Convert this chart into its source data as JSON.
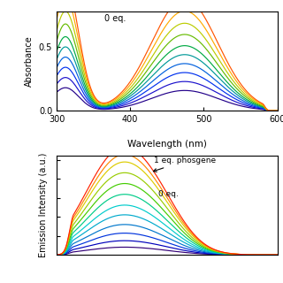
{
  "top_panel": {
    "xlabel": "Wavelength (nm)",
    "ylabel": "Absorbance",
    "xlim": [
      300,
      600
    ],
    "ylim": [
      0.0,
      0.78
    ],
    "yticks": [
      0.0,
      0.5
    ],
    "xticks": [
      300,
      400,
      500,
      600
    ],
    "label_0eq": "0 eq.",
    "n_curves": 10,
    "peak1_wl": 312,
    "peak1_sigma": 18,
    "peak2_wl": 474,
    "peak2_sigma": 45,
    "peak2_to_peak1_ratio": 0.88,
    "cutoff_wl": 580,
    "scales": [
      0.18,
      0.26,
      0.34,
      0.42,
      0.5,
      0.58,
      0.68,
      0.78,
      0.89,
      1.0
    ],
    "colors": [
      "#22008A",
      "#1A10CC",
      "#0030EE",
      "#0060DD",
      "#009999",
      "#00AA44",
      "#66BB00",
      "#BBCC00",
      "#FFAA00",
      "#FF5500"
    ]
  },
  "bottom_panel": {
    "ylabel": "Emission Intensity (a.u.)",
    "xlim": [
      490,
      750
    ],
    "ylim": [
      0,
      1.05
    ],
    "label_0eq": "0 eq.",
    "label_1eq": "1 eq. phosgene",
    "n_curves": 12,
    "peak_wl": 560,
    "peak_sigma": 38,
    "shoulder_wl": 610,
    "shoulder_sigma": 32,
    "shoulder_ratio": 0.38,
    "scales": [
      0.07,
      0.13,
      0.2,
      0.28,
      0.37,
      0.46,
      0.56,
      0.66,
      0.76,
      0.86,
      0.93,
      1.0
    ],
    "colors": [
      "#330077",
      "#0000BB",
      "#0033DD",
      "#0077CC",
      "#00AACC",
      "#00CCCC",
      "#00CC88",
      "#44CC00",
      "#99CC00",
      "#DDCC00",
      "#FF8800",
      "#FF2200"
    ]
  },
  "background_color": "#FFFFFF"
}
